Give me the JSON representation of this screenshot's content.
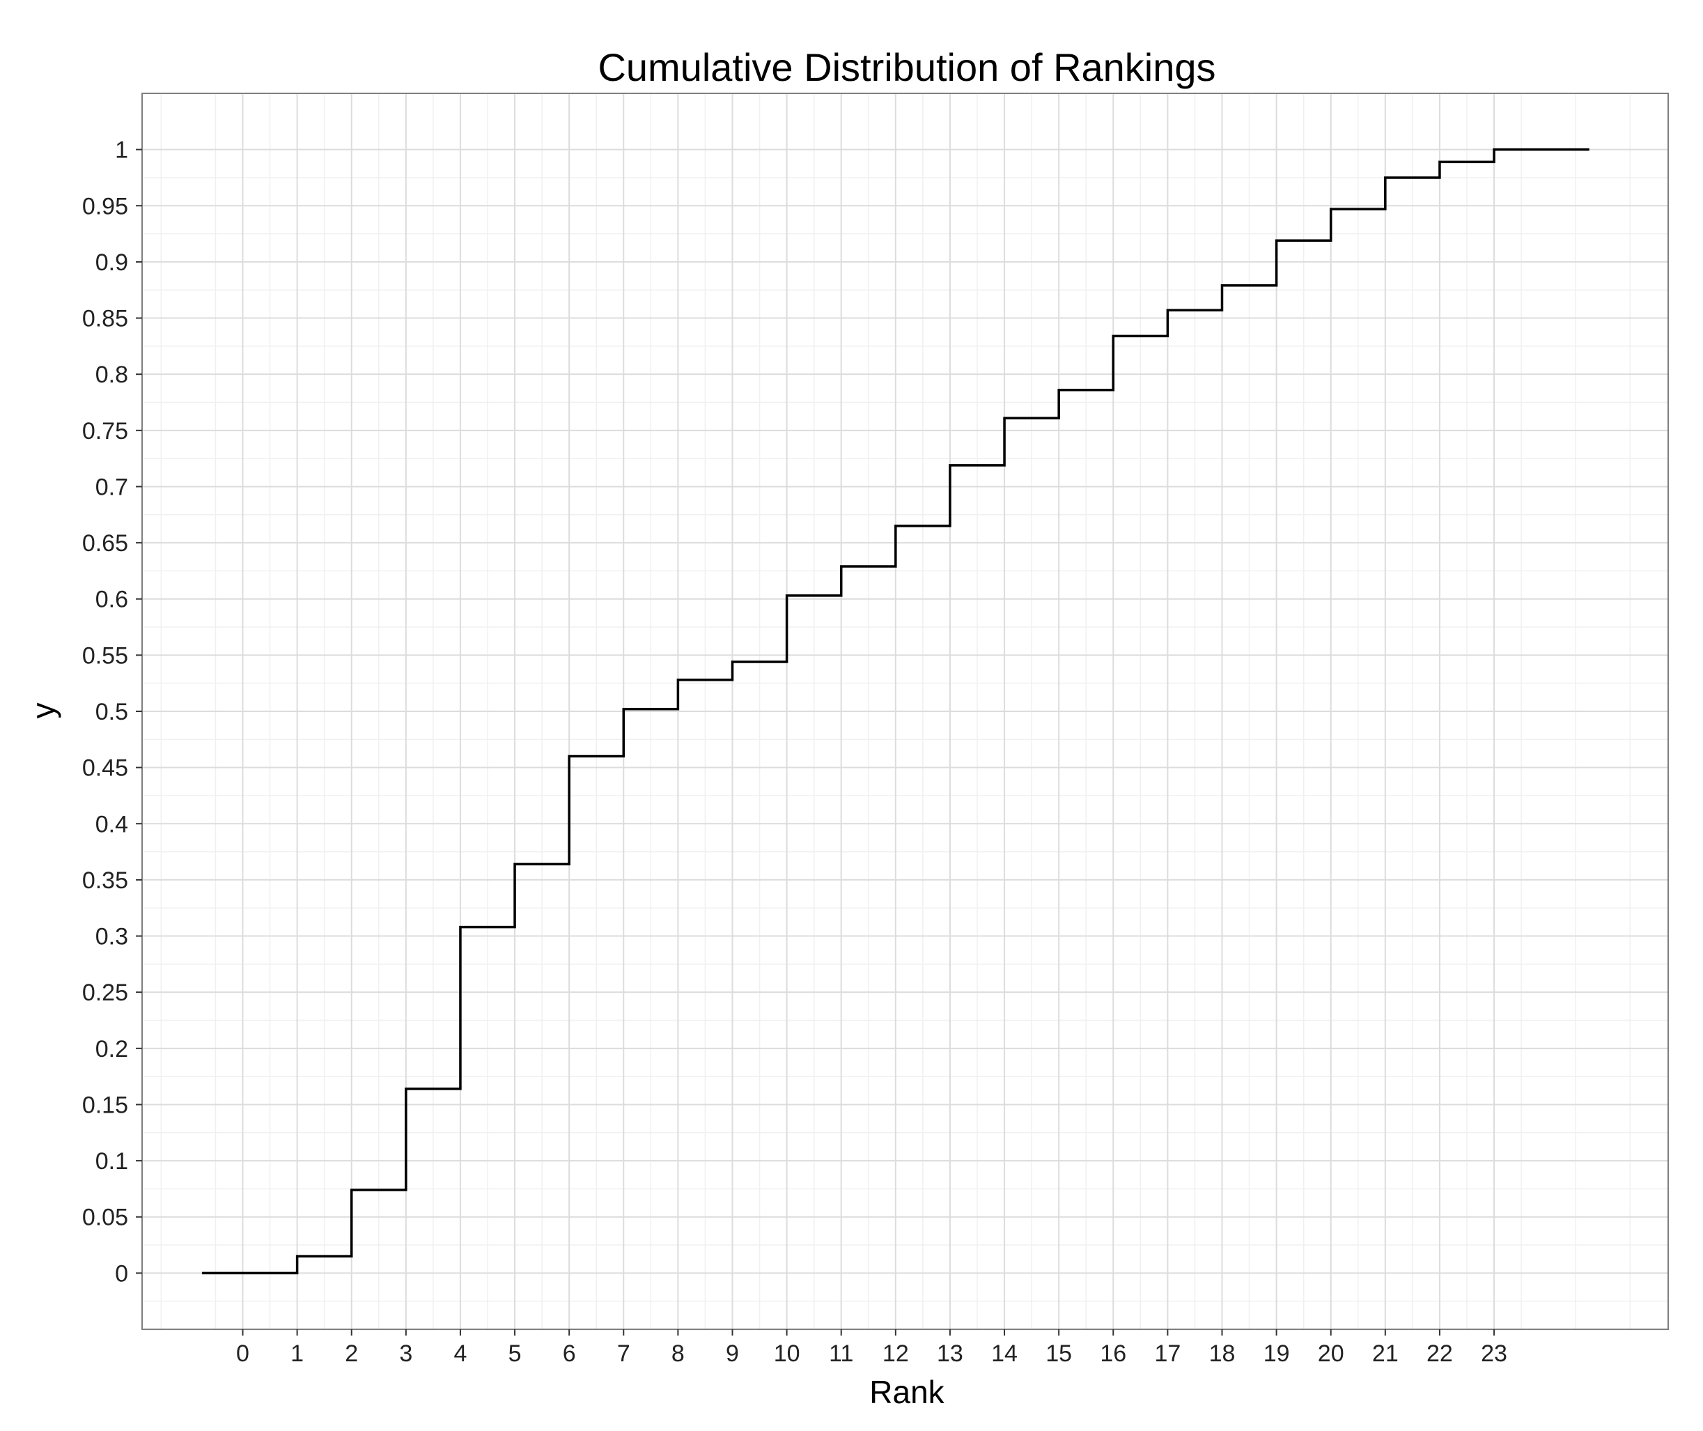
{
  "chart_data": {
    "type": "line",
    "style": "step",
    "title": "Cumulative Distribution of Rankings",
    "xlabel": "Rank",
    "ylabel": "y",
    "xlim": [
      -1.85,
      26.2
    ],
    "ylim": [
      -0.05,
      1.05
    ],
    "x_ticks": [
      0,
      1,
      2,
      3,
      4,
      5,
      6,
      7,
      8,
      9,
      10,
      11,
      12,
      13,
      14,
      15,
      16,
      17,
      18,
      19,
      20,
      21,
      22,
      23
    ],
    "y_ticks": [
      0,
      0.05,
      0.1,
      0.15,
      0.2,
      0.25,
      0.3,
      0.35,
      0.4,
      0.45,
      0.5,
      0.55,
      0.6,
      0.65,
      0.7,
      0.75,
      0.8,
      0.85,
      0.9,
      0.95,
      1
    ],
    "y_tick_labels": [
      "0",
      "0.05",
      "0.1",
      "0.15",
      "0.2",
      "0.25",
      "0.3",
      "0.35",
      "0.4",
      "0.45",
      "0.5",
      "0.55",
      "0.6",
      "0.65",
      "0.7",
      "0.75",
      "0.8",
      "0.85",
      "0.9",
      "0.95",
      "1"
    ],
    "grid": true,
    "legend": "none",
    "series": [
      {
        "x_start": -0.75,
        "x_end": 24.75,
        "x": [
          1,
          2,
          3,
          4,
          5,
          6,
          7,
          8,
          9,
          10,
          11,
          12,
          13,
          14,
          15,
          16,
          17,
          18,
          19,
          20,
          21,
          22,
          23
        ],
        "y": [
          0.0,
          0.015,
          0.074,
          0.164,
          0.308,
          0.364,
          0.46,
          0.502,
          0.528,
          0.544,
          0.603,
          0.629,
          0.665,
          0.719,
          0.761,
          0.786,
          0.834,
          0.857,
          0.879,
          0.919,
          0.947,
          0.975,
          0.989
        ],
        "y_final": 1.0,
        "color": "#000000"
      }
    ]
  }
}
